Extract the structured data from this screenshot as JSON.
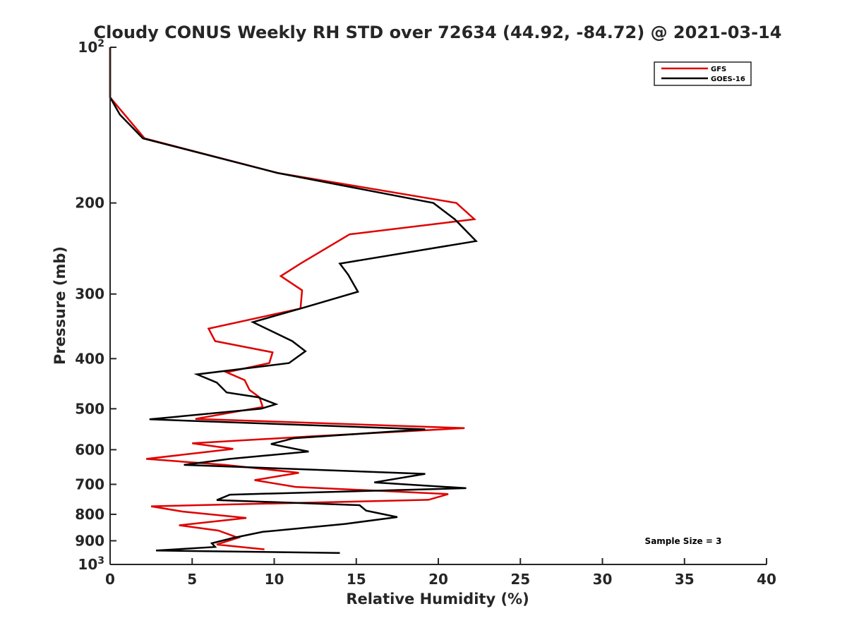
{
  "chart_data": {
    "type": "line",
    "title": "Cloudy CONUS Weekly RH STD over 72634 (44.92, -84.72) @ 2021-03-14",
    "xlabel": "Relative Humidity (%)",
    "ylabel": "Pressure (mb)",
    "xlim": [
      0,
      40
    ],
    "ylim": [
      100,
      1000
    ],
    "y_scale": "log",
    "y_reversed": true,
    "x_ticks": [
      0,
      5,
      10,
      15,
      20,
      25,
      30,
      35,
      40
    ],
    "y_ticks": [
      {
        "value": 100,
        "base": "10",
        "exp": "2"
      },
      {
        "value": 200,
        "label": "200"
      },
      {
        "value": 300,
        "label": "300"
      },
      {
        "value": 400,
        "label": "400"
      },
      {
        "value": 500,
        "label": "500"
      },
      {
        "value": 600,
        "label": "600"
      },
      {
        "value": 700,
        "label": "700"
      },
      {
        "value": 800,
        "label": "800"
      },
      {
        "value": 900,
        "label": "900"
      },
      {
        "value": 1000,
        "base": "10",
        "exp": "3"
      }
    ],
    "grid": false,
    "legend_position": "top-right",
    "annotation": "Sample Size = 3",
    "series": [
      {
        "name": "GFS",
        "color": "#e00000",
        "points": [
          [
            0.0,
            100
          ],
          [
            0.0,
            125
          ],
          [
            2.1,
            150
          ],
          [
            10.2,
            175
          ],
          [
            21.1,
            200
          ],
          [
            22.2,
            215
          ],
          [
            14.6,
            230
          ],
          [
            11.6,
            262
          ],
          [
            10.4,
            277
          ],
          [
            11.7,
            295
          ],
          [
            11.6,
            320
          ],
          [
            6.0,
            350
          ],
          [
            6.4,
            370
          ],
          [
            9.9,
            389
          ],
          [
            9.7,
            408
          ],
          [
            7.1,
            425
          ],
          [
            8.2,
            440
          ],
          [
            8.5,
            460
          ],
          [
            9.1,
            475
          ],
          [
            9.3,
            496
          ],
          [
            5.2,
            523
          ],
          [
            21.6,
            545
          ],
          [
            12.4,
            565
          ],
          [
            5.0,
            583
          ],
          [
            7.5,
            598
          ],
          [
            2.2,
            625
          ],
          [
            7.0,
            642
          ],
          [
            11.5,
            665
          ],
          [
            8.8,
            687
          ],
          [
            11.3,
            708
          ],
          [
            20.6,
            731
          ],
          [
            19.4,
            750
          ],
          [
            2.5,
            772
          ],
          [
            4.4,
            790
          ],
          [
            8.3,
            813
          ],
          [
            4.2,
            840
          ],
          [
            6.6,
            860
          ],
          [
            7.8,
            888
          ],
          [
            6.5,
            915
          ],
          [
            9.4,
            935
          ]
        ]
      },
      {
        "name": "GOES-16",
        "color": "#000000",
        "points": [
          [
            0.0,
            100
          ],
          [
            0.0,
            125
          ],
          [
            0.6,
            135
          ],
          [
            2.0,
            150
          ],
          [
            10.2,
            175
          ],
          [
            19.7,
            200
          ],
          [
            21.0,
            215
          ],
          [
            22.3,
            237
          ],
          [
            14.0,
            262
          ],
          [
            14.5,
            275
          ],
          [
            15.1,
            297
          ],
          [
            11.9,
            318
          ],
          [
            8.7,
            340
          ],
          [
            11.1,
            370
          ],
          [
            11.9,
            387
          ],
          [
            10.9,
            408
          ],
          [
            5.3,
            429
          ],
          [
            6.5,
            445
          ],
          [
            7.1,
            465
          ],
          [
            9.0,
            475
          ],
          [
            10.1,
            490
          ],
          [
            9.2,
            500
          ],
          [
            2.4,
            524
          ],
          [
            19.2,
            548
          ],
          [
            11.2,
            570
          ],
          [
            9.8,
            585
          ],
          [
            12.1,
            605
          ],
          [
            7.3,
            625
          ],
          [
            4.5,
            642
          ],
          [
            19.2,
            668
          ],
          [
            16.1,
            694
          ],
          [
            21.7,
            712
          ],
          [
            7.3,
            733
          ],
          [
            6.5,
            751
          ],
          [
            15.2,
            768
          ],
          [
            15.6,
            787
          ],
          [
            17.5,
            810
          ],
          [
            14.3,
            835
          ],
          [
            9.3,
            865
          ],
          [
            7.4,
            890
          ],
          [
            6.2,
            910
          ],
          [
            6.4,
            925
          ],
          [
            2.8,
            940
          ],
          [
            14.0,
            950
          ]
        ]
      }
    ]
  }
}
